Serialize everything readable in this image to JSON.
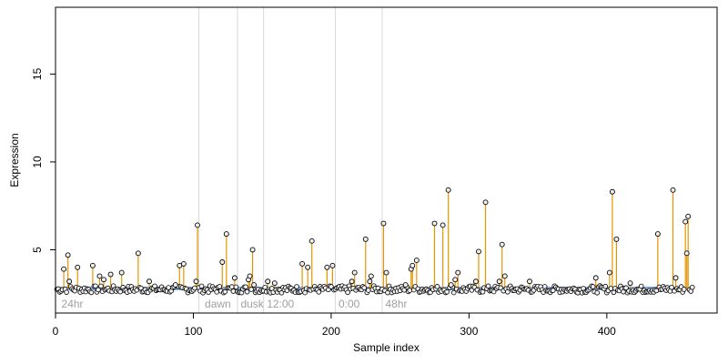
{
  "chart_data": {
    "type": "scatter",
    "title": "",
    "xlabel": "Sample index",
    "ylabel": "Expression",
    "xlim": [
      0,
      480
    ],
    "ylim": [
      1.4,
      18.8
    ],
    "xticks": [
      0,
      100,
      200,
      300,
      400
    ],
    "yticks": [
      5,
      10,
      15
    ],
    "baseline": 2.8,
    "grid": false,
    "legend": "none",
    "colors": {
      "stem": "#e69500",
      "baseline_band": "#7ea6e0",
      "point_fill": "#f0f0f0",
      "point_stroke": "#000000",
      "divider": "#d9d9d9",
      "group_label": "#a0a0a0"
    },
    "group_dividers": [
      104,
      132,
      151,
      203,
      237
    ],
    "group_labels": [
      {
        "x": 3,
        "label": "24hr"
      },
      {
        "x": 107,
        "label": "dawn"
      },
      {
        "x": 133,
        "label": "dusk"
      },
      {
        "x": 152,
        "label": "12:00"
      },
      {
        "x": 204,
        "label": "0:00"
      },
      {
        "x": 238,
        "label": "48hr"
      }
    ],
    "highlighted_points": [
      {
        "x": 6,
        "y": 3.9
      },
      {
        "x": 9,
        "y": 4.7
      },
      {
        "x": 10,
        "y": 3.2
      },
      {
        "x": 16,
        "y": 4.0
      },
      {
        "x": 27,
        "y": 4.1
      },
      {
        "x": 32,
        "y": 3.5
      },
      {
        "x": 35,
        "y": 3.3
      },
      {
        "x": 40,
        "y": 3.6
      },
      {
        "x": 48,
        "y": 3.7
      },
      {
        "x": 60,
        "y": 4.8
      },
      {
        "x": 68,
        "y": 3.2
      },
      {
        "x": 87,
        "y": 3.0
      },
      {
        "x": 90,
        "y": 4.1
      },
      {
        "x": 93,
        "y": 4.2
      },
      {
        "x": 102,
        "y": 3.2
      },
      {
        "x": 103,
        "y": 6.4
      },
      {
        "x": 121,
        "y": 4.3
      },
      {
        "x": 124,
        "y": 5.9
      },
      {
        "x": 130,
        "y": 3.4
      },
      {
        "x": 140,
        "y": 3.3
      },
      {
        "x": 141,
        "y": 3.5
      },
      {
        "x": 143,
        "y": 5.0
      },
      {
        "x": 144,
        "y": 3.0
      },
      {
        "x": 154,
        "y": 3.2
      },
      {
        "x": 159,
        "y": 3.1
      },
      {
        "x": 179,
        "y": 4.2
      },
      {
        "x": 183,
        "y": 4.0
      },
      {
        "x": 186,
        "y": 5.5
      },
      {
        "x": 197,
        "y": 4.0
      },
      {
        "x": 201,
        "y": 4.1
      },
      {
        "x": 215,
        "y": 3.2
      },
      {
        "x": 217,
        "y": 3.7
      },
      {
        "x": 225,
        "y": 5.6
      },
      {
        "x": 228,
        "y": 3.2
      },
      {
        "x": 229,
        "y": 3.5
      },
      {
        "x": 238,
        "y": 6.5
      },
      {
        "x": 240,
        "y": 3.7
      },
      {
        "x": 254,
        "y": 3.0
      },
      {
        "x": 258,
        "y": 3.9
      },
      {
        "x": 259,
        "y": 4.1
      },
      {
        "x": 262,
        "y": 4.4
      },
      {
        "x": 275,
        "y": 6.5
      },
      {
        "x": 281,
        "y": 6.4
      },
      {
        "x": 285,
        "y": 8.4
      },
      {
        "x": 287,
        "y": 3.0
      },
      {
        "x": 290,
        "y": 3.3
      },
      {
        "x": 292,
        "y": 3.7
      },
      {
        "x": 305,
        "y": 3.2
      },
      {
        "x": 307,
        "y": 4.9
      },
      {
        "x": 312,
        "y": 7.7
      },
      {
        "x": 322,
        "y": 3.2
      },
      {
        "x": 324,
        "y": 5.3
      },
      {
        "x": 326,
        "y": 3.5
      },
      {
        "x": 344,
        "y": 3.2
      },
      {
        "x": 392,
        "y": 3.4
      },
      {
        "x": 402,
        "y": 3.7
      },
      {
        "x": 404,
        "y": 8.3
      },
      {
        "x": 407,
        "y": 5.6
      },
      {
        "x": 417,
        "y": 3.1
      },
      {
        "x": 437,
        "y": 5.9
      },
      {
        "x": 448,
        "y": 8.4
      },
      {
        "x": 450,
        "y": 3.4
      },
      {
        "x": 457,
        "y": 6.6
      },
      {
        "x": 458,
        "y": 4.8
      },
      {
        "x": 459,
        "y": 6.9
      }
    ],
    "background_points": {
      "x_range": [
        1,
        462
      ],
      "y_range": [
        2.55,
        2.95
      ],
      "description_values": "dense band of remaining samples near the baseline"
    }
  }
}
